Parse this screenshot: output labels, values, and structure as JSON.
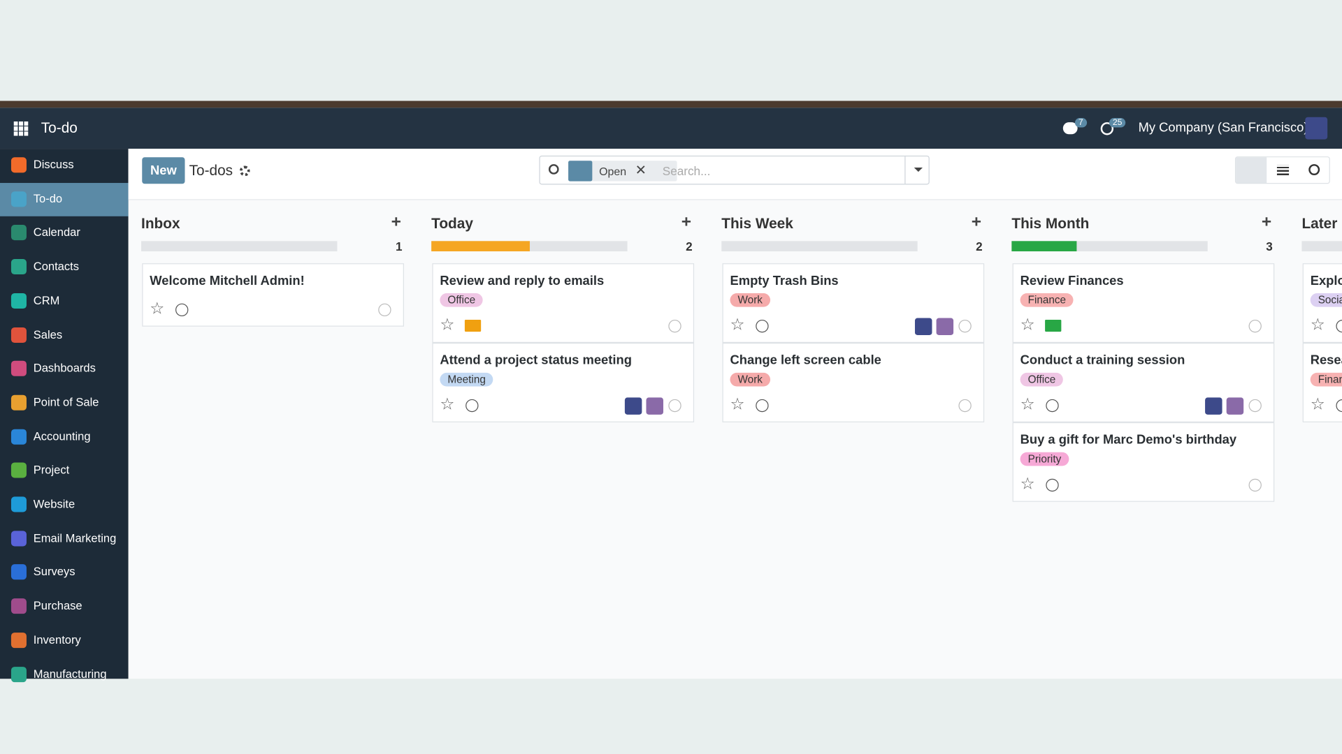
{
  "navbar": {
    "app": "To-do",
    "messages_count": 7,
    "activities_count": 25,
    "company": "My Company (San Francisco)"
  },
  "sidebar": [
    "Discuss",
    "To-do",
    "Calendar",
    "Contacts",
    "CRM",
    "Sales",
    "Dashboards",
    "Point of Sale",
    "Accounting",
    "Project",
    "Website",
    "Email Marketing",
    "Surveys",
    "Purchase",
    "Inventory",
    "Manufacturing"
  ],
  "control_panel": {
    "new_button": "New",
    "breadcrumb": "To-dos",
    "facet": "Open",
    "search_placeholder": "Search..."
  },
  "columns": [
    {
      "name": "Inbox",
      "count": 1,
      "cards": [
        {
          "title": "Welcome Mitchell Admin!"
        }
      ]
    },
    {
      "name": "Today",
      "count": 2,
      "cards": [
        {
          "title": "Review and reply to emails",
          "tags": [
            {
              "label": "Office",
              "color": "#efc6e4"
            }
          ]
        },
        {
          "title": "Attend a project status meeting",
          "tags": [
            {
              "label": "Meeting",
              "color": "#c3d9f3"
            }
          ]
        }
      ]
    },
    {
      "name": "This Week",
      "count": 2,
      "cards": [
        {
          "title": "Empty Trash Bins",
          "tags": [
            {
              "label": "Work",
              "color": "#f5aaaa"
            }
          ]
        },
        {
          "title": "Change left screen cable",
          "tags": [
            {
              "label": "Work",
              "color": "#f5aaaa"
            }
          ]
        }
      ]
    },
    {
      "name": "This Month",
      "count": 3,
      "cards": [
        {
          "title": "Review Finances",
          "tags": [
            {
              "label": "Finance",
              "color": "#f7b2b2"
            }
          ]
        },
        {
          "title": "Conduct a training session",
          "tags": [
            {
              "label": "Office",
              "color": "#efc6e4"
            }
          ]
        },
        {
          "title": "Buy a gift for Marc Demo's birthday",
          "tags": [
            {
              "label": "Priority",
              "color": "#f6a9d6"
            }
          ]
        }
      ]
    },
    {
      "name": "Later",
      "cards": [
        {
          "title": "Explo",
          "tags": [
            {
              "label": "Socia",
              "color": "#dcd0f2"
            }
          ]
        },
        {
          "title": "Resea",
          "tags": [
            {
              "label": "Finan",
              "color": "#f7b2b2"
            }
          ]
        }
      ]
    }
  ]
}
